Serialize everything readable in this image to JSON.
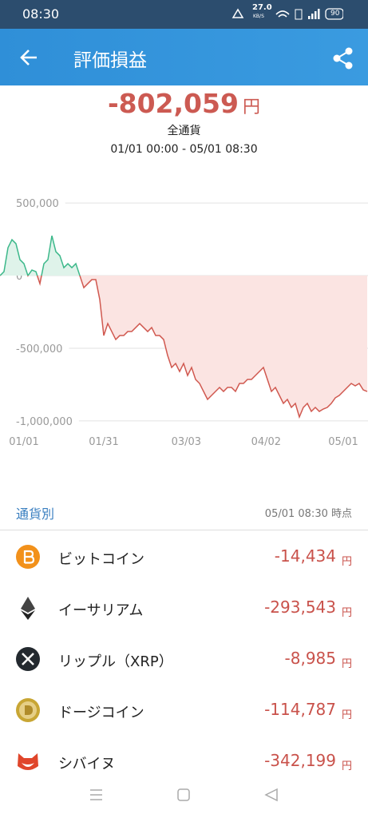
{
  "status_bar": {
    "time": "08:30",
    "speed": "27.0",
    "speed_unit": "KB/S",
    "battery": "90"
  },
  "header": {
    "title": "評価損益"
  },
  "summary": {
    "amount": "-802,059",
    "unit": "円",
    "scope": "全通貨",
    "period": "01/01 00:00 - 05/01 08:30"
  },
  "chart_data": {
    "type": "area",
    "x": [
      -9,
      -7.5,
      -6,
      -4.5,
      -3,
      -1.5,
      0,
      1.5,
      3,
      4.5,
      6,
      7.5,
      9,
      10.5,
      12,
      13.5,
      15,
      16.5,
      18,
      19.5,
      21,
      22.5,
      24,
      25.5,
      27,
      28.5,
      30,
      31.5,
      33,
      34.5,
      36,
      37.5,
      39,
      40.5,
      42,
      43.5,
      45,
      46.5,
      48,
      49.5,
      51,
      52.5,
      54,
      55.5,
      57,
      58.5,
      60,
      61.5,
      63,
      64.5,
      66,
      67.5,
      69,
      70.5,
      72,
      73.5,
      75,
      76.5,
      78,
      79.5,
      81,
      82.5,
      84,
      85.5,
      87,
      88.5,
      90,
      91.5,
      93,
      94.5,
      96,
      97.5,
      99,
      100.5,
      102,
      103.5,
      105,
      106.5,
      108,
      109.5,
      111,
      112.5,
      114,
      115.5,
      117,
      118.5,
      120,
      121.5,
      123,
      124.5,
      126,
      127.5,
      129
    ],
    "values": [
      0,
      27500,
      192500,
      247500,
      220000,
      110000,
      82500,
      0,
      38500,
      27500,
      -55000,
      82500,
      110000,
      275000,
      165000,
      137500,
      55000,
      82500,
      55000,
      82500,
      0,
      -82500,
      -55000,
      -27500,
      -27500,
      -165000,
      -412500,
      -330000,
      -385000,
      -440000,
      -412500,
      -412500,
      -385000,
      -385000,
      -357500,
      -330000,
      -357500,
      -385000,
      -357500,
      -412500,
      -412500,
      -440000,
      -550000,
      -632500,
      -605000,
      -660000,
      -605000,
      -687500,
      -632500,
      -715000,
      -742500,
      -797500,
      -852500,
      -825000,
      -797500,
      -770000,
      -797500,
      -770000,
      -770000,
      -797500,
      -742500,
      -742500,
      -715000,
      -715000,
      -687500,
      -660000,
      -632500,
      -715000,
      -797500,
      -770000,
      -825000,
      -880000,
      -852500,
      -907500,
      -880000,
      -973500,
      -907500,
      -880000,
      -935000,
      -907500,
      -935000,
      -918500,
      -907500,
      -880000,
      -841500,
      -825000,
      -797500,
      -770000,
      -742500,
      -759000,
      -742500,
      -786500,
      -797500
    ],
    "xlim": [
      -9,
      129
    ],
    "xticks": [
      {
        "value": 0,
        "label": "01/01"
      },
      {
        "value": 30,
        "label": "01/31"
      },
      {
        "value": 61,
        "label": "03/03"
      },
      {
        "value": 91,
        "label": "04/02"
      },
      {
        "value": 120,
        "label": "05/01"
      }
    ],
    "ylim": [
      -1100000,
      600000
    ],
    "yticks": [
      {
        "value": 500000,
        "label": "500,000"
      },
      0,
      {
        "value": -500000,
        "label": "-500,000"
      },
      {
        "value": -1000000,
        "label": "-1,000,000"
      }
    ],
    "grid": true,
    "positive_color": "#3cb88a",
    "negative_color": "#d0584f",
    "positive_fill": "#dff3ea",
    "negative_fill": "#fbe4e2"
  },
  "section": {
    "title": "通貨別",
    "as_of": "05/01 08:30 時点"
  },
  "currencies": [
    {
      "name": "ビットコイン",
      "value": "-14,434",
      "unit": "円"
    },
    {
      "name": "イーサリアム",
      "value": "-293,543",
      "unit": "円"
    },
    {
      "name": "リップル（XRP）",
      "value": "-8,985",
      "unit": "円"
    },
    {
      "name": "ドージコイン",
      "value": "-114,787",
      "unit": "円"
    },
    {
      "name": "シバイヌ",
      "value": "-342,199",
      "unit": "円"
    }
  ]
}
